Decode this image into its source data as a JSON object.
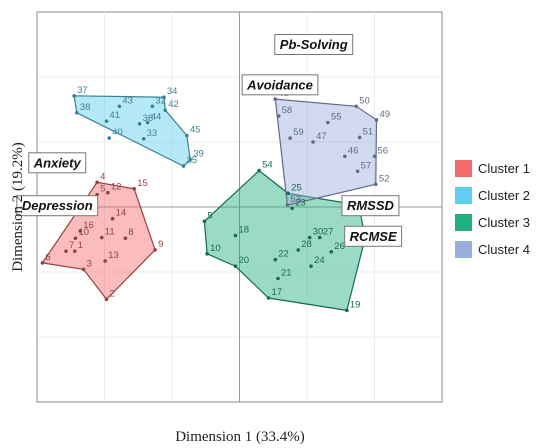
{
  "chart_data": {
    "type": "scatter",
    "xlabel": "Dimension 1 (33.4%)",
    "ylabel": "Dimension 2 (19.2%)",
    "xlim": [
      -3,
      3
    ],
    "ylim": [
      -3,
      3
    ],
    "grid": true,
    "legend_position": "right",
    "series": [
      {
        "name": "Cluster 1",
        "color": "#f36b6b",
        "points": [
          {
            "id": "1",
            "x": -2.44,
            "y": -0.68
          },
          {
            "id": "2",
            "x": -1.97,
            "y": -1.42
          },
          {
            "id": "3",
            "x": -2.31,
            "y": -0.96
          },
          {
            "id": "4",
            "x": -2.11,
            "y": 0.38
          },
          {
            "id": "5",
            "x": -2.11,
            "y": 0.19
          },
          {
            "id": "6",
            "x": -2.92,
            "y": -0.86
          },
          {
            "id": "7",
            "x": -2.57,
            "y": -0.68
          },
          {
            "id": "8",
            "x": -1.69,
            "y": -0.48
          },
          {
            "id": "9",
            "x": -1.25,
            "y": -0.66
          },
          {
            "id": "10",
            "x": -2.43,
            "y": -0.48
          },
          {
            "id": "11",
            "x": -2.04,
            "y": -0.47
          },
          {
            "id": "12",
            "x": -1.95,
            "y": 0.22
          },
          {
            "id": "13",
            "x": -1.99,
            "y": -0.83
          },
          {
            "id": "14",
            "x": -1.88,
            "y": -0.18
          },
          {
            "id": "15",
            "x": -1.56,
            "y": 0.28
          },
          {
            "id": "16",
            "x": -2.36,
            "y": -0.37
          }
        ]
      },
      {
        "name": "Cluster 2",
        "color": "#5ecfee",
        "points": [
          {
            "id": "32",
            "x": -1.29,
            "y": 1.55
          },
          {
            "id": "33",
            "x": -1.42,
            "y": 1.05
          },
          {
            "id": "34",
            "x": -1.12,
            "y": 1.69
          },
          {
            "id": "35",
            "x": -0.83,
            "y": 0.63
          },
          {
            "id": "36",
            "x": -1.48,
            "y": 1.28
          },
          {
            "id": "37",
            "x": -2.45,
            "y": 1.71
          },
          {
            "id": "38",
            "x": -2.41,
            "y": 1.45
          },
          {
            "id": "39",
            "x": -0.73,
            "y": 0.73
          },
          {
            "id": "40",
            "x": -1.93,
            "y": 1.06
          },
          {
            "id": "41",
            "x": -1.97,
            "y": 1.32
          },
          {
            "id": "42",
            "x": -1.1,
            "y": 1.49
          },
          {
            "id": "43",
            "x": -1.78,
            "y": 1.55
          },
          {
            "id": "44",
            "x": -1.36,
            "y": 1.3
          },
          {
            "id": "45",
            "x": -0.78,
            "y": 1.1
          }
        ]
      },
      {
        "name": "Cluster 3",
        "color": "#22b07d",
        "points": [
          {
            "id": "5",
            "x": -0.52,
            "y": -0.22
          },
          {
            "id": "10",
            "x": -0.48,
            "y": -0.72
          },
          {
            "id": "17",
            "x": 0.43,
            "y": -1.4
          },
          {
            "id": "18",
            "x": -0.06,
            "y": -0.44
          },
          {
            "id": "19",
            "x": 1.59,
            "y": -1.59
          },
          {
            "id": "20",
            "x": -0.06,
            "y": -0.91
          },
          {
            "id": "21",
            "x": 0.57,
            "y": -1.1
          },
          {
            "id": "22",
            "x": 0.53,
            "y": -0.81
          },
          {
            "id": "23",
            "x": 0.78,
            "y": -0.02
          },
          {
            "id": "24",
            "x": 1.06,
            "y": -0.91
          },
          {
            "id": "25",
            "x": 0.72,
            "y": 0.21
          },
          {
            "id": "26",
            "x": 1.36,
            "y": -0.69
          },
          {
            "id": "27",
            "x": 1.19,
            "y": -0.47
          },
          {
            "id": "28",
            "x": 0.87,
            "y": -0.66
          },
          {
            "id": "29",
            "x": 1.86,
            "y": -0.48
          },
          {
            "id": "30",
            "x": 1.04,
            "y": -0.47
          },
          {
            "id": "31",
            "x": 1.77,
            "y": 0.03
          },
          {
            "id": "54",
            "x": 0.29,
            "y": 0.56
          }
        ]
      },
      {
        "name": "Cluster 4",
        "color": "#99aedb",
        "points": [
          {
            "id": "46",
            "x": 1.56,
            "y": 0.78
          },
          {
            "id": "47",
            "x": 1.09,
            "y": 1.0
          },
          {
            "id": "48",
            "x": 0.53,
            "y": 1.66
          },
          {
            "id": "49",
            "x": 2.03,
            "y": 1.34
          },
          {
            "id": "50",
            "x": 1.73,
            "y": 1.55
          },
          {
            "id": "51",
            "x": 1.78,
            "y": 1.07
          },
          {
            "id": "52",
            "x": 2.02,
            "y": 0.35
          },
          {
            "id": "53",
            "x": 0.71,
            "y": 0.03
          },
          {
            "id": "55",
            "x": 1.31,
            "y": 1.3
          },
          {
            "id": "56",
            "x": 2.0,
            "y": 0.78
          },
          {
            "id": "57",
            "x": 1.75,
            "y": 0.55
          },
          {
            "id": "58",
            "x": 0.58,
            "y": 1.4
          },
          {
            "id": "59",
            "x": 0.75,
            "y": 1.06
          }
        ]
      }
    ],
    "hulls": {
      "Cluster 1": [
        "6",
        "3",
        "2",
        "9",
        "15",
        "4"
      ],
      "Cluster 2": [
        "38",
        "37",
        "34",
        "42",
        "45",
        "39",
        "35"
      ],
      "Cluster 3": [
        "10",
        "20",
        "17",
        "19",
        "29",
        "31",
        "25",
        "54",
        "5"
      ],
      "Cluster 4": [
        "48",
        "50",
        "49",
        "52",
        "53"
      ]
    },
    "variables": [
      {
        "name": "Pb-Solving",
        "x": 1.1,
        "y": 2.5
      },
      {
        "name": "Avoidance",
        "x": 0.6,
        "y": 1.88
      },
      {
        "name": "Anxiety",
        "x": -2.7,
        "y": 0.68
      },
      {
        "name": "Depression",
        "x": -2.7,
        "y": 0.02
      },
      {
        "name": "RMSSD",
        "x": 1.94,
        "y": 0.02
      },
      {
        "name": "RCMSE",
        "x": 1.98,
        "y": -0.45
      }
    ]
  }
}
